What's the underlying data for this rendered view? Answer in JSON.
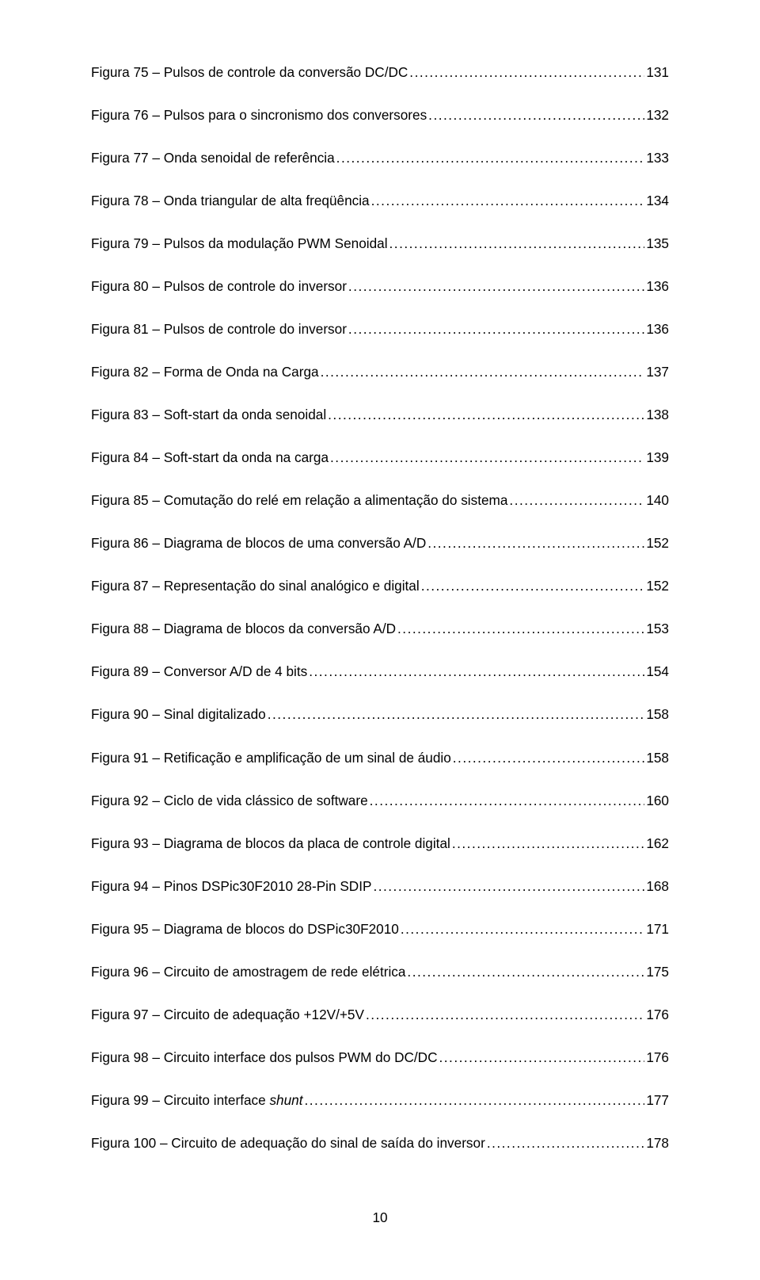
{
  "page_number": "10",
  "style": {
    "font_family": "Arial",
    "font_size_pt": 12,
    "text_color": "#000000",
    "background_color": "#ffffff",
    "leader_char": "."
  },
  "entries": [
    {
      "label": "Figura 75 – Pulsos de controle da conversão DC/DC",
      "page": "131"
    },
    {
      "label": "Figura 76 – Pulsos para o sincronismo dos conversores",
      "page": "132"
    },
    {
      "label": "Figura 77 – Onda senoidal de referência",
      "page": "133"
    },
    {
      "label": "Figura 78 – Onda triangular de alta freqüência",
      "page": "134"
    },
    {
      "label": "Figura 79 – Pulsos da modulação PWM Senoidal",
      "page": "135"
    },
    {
      "label": "Figura 80 – Pulsos de controle do inversor",
      "page": "136"
    },
    {
      "label": "Figura 81 – Pulsos de controle do inversor",
      "page": "136"
    },
    {
      "label": "Figura 82 – Forma de Onda na Carga",
      "page": "137"
    },
    {
      "label": "Figura 83 – Soft-start da onda senoidal",
      "page": "138"
    },
    {
      "label": "Figura 84 – Soft-start da onda na carga",
      "page": "139"
    },
    {
      "label": "Figura 85 – Comutação do relé em relação a alimentação do sistema",
      "page": "140"
    },
    {
      "label": "Figura 86 – Diagrama de blocos de uma conversão A/D",
      "page": "152"
    },
    {
      "label": "Figura 87 – Representação do sinal analógico e digital",
      "page": "152"
    },
    {
      "label": "Figura 88 – Diagrama de blocos da conversão A/D",
      "page": "153"
    },
    {
      "label": "Figura 89 – Conversor A/D de 4 bits",
      "page": "154"
    },
    {
      "label": "Figura 90 – Sinal digitalizado",
      "page": "158"
    },
    {
      "label": "Figura 91 – Retificação e amplificação de um sinal de áudio",
      "page": "158"
    },
    {
      "label": "Figura 92 – Ciclo de vida clássico de software",
      "page": "160"
    },
    {
      "label": "Figura 93 – Diagrama de blocos da placa de controle digital",
      "page": "162"
    },
    {
      "label": "Figura 94 – Pinos DSPic30F2010 28-Pin SDIP",
      "page": "168"
    },
    {
      "label": "Figura 95 – Diagrama de blocos do DSPic30F2010",
      "page": "171"
    },
    {
      "label": "Figura 96 – Circuito de amostragem de rede elétrica",
      "page": "175"
    },
    {
      "label": "Figura 97 – Circuito de adequação +12V/+5V",
      "page": "176"
    },
    {
      "label": "Figura 98 – Circuito interface dos pulsos PWM do DC/DC",
      "page": "176"
    },
    {
      "label_html": "Figura 99 – Circuito interface <i>shunt</i>",
      "label": "Figura 99 – Circuito interface shunt",
      "page": "177"
    },
    {
      "label": "Figura 100 – Circuito de adequação do sinal de saída do inversor",
      "page": "178"
    }
  ]
}
